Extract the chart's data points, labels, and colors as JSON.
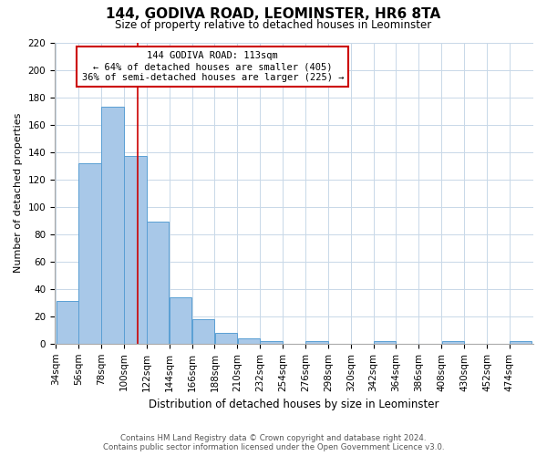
{
  "title": "144, GODIVA ROAD, LEOMINSTER, HR6 8TA",
  "subtitle": "Size of property relative to detached houses in Leominster",
  "xlabel": "Distribution of detached houses by size in Leominster",
  "ylabel": "Number of detached properties",
  "bar_values": [
    31,
    132,
    173,
    137,
    89,
    34,
    18,
    8,
    4,
    2,
    0,
    2,
    0,
    0,
    2,
    0,
    0,
    2,
    0,
    0,
    2
  ],
  "bar_labels": [
    "34sqm",
    "56sqm",
    "78sqm",
    "100sqm",
    "122sqm",
    "144sqm",
    "166sqm",
    "188sqm",
    "210sqm",
    "232sqm",
    "254sqm",
    "276sqm",
    "298sqm",
    "320sqm",
    "342sqm",
    "364sqm",
    "386sqm",
    "408sqm",
    "430sqm",
    "452sqm",
    "474sqm"
  ],
  "bin_edges": [
    34,
    56,
    78,
    100,
    122,
    144,
    166,
    188,
    210,
    232,
    254,
    276,
    298,
    320,
    342,
    364,
    386,
    408,
    430,
    452,
    474
  ],
  "bin_width": 22,
  "bar_color": "#a8c8e8",
  "bar_edge_color": "#5a9fd4",
  "property_line_x": 113,
  "property_line_color": "#cc0000",
  "ylim": [
    0,
    220
  ],
  "yticks": [
    0,
    20,
    40,
    60,
    80,
    100,
    120,
    140,
    160,
    180,
    200,
    220
  ],
  "annotation_title": "144 GODIVA ROAD: 113sqm",
  "annotation_line1": "← 64% of detached houses are smaller (405)",
  "annotation_line2": "36% of semi-detached houses are larger (225) →",
  "annotation_box_color": "#cc0000",
  "footer_line1": "Contains HM Land Registry data © Crown copyright and database right 2024.",
  "footer_line2": "Contains public sector information licensed under the Open Government Licence v3.0.",
  "background_color": "#ffffff",
  "grid_color": "#c8d8e8"
}
